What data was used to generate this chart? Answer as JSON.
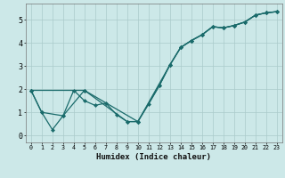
{
  "xlabel": "Humidex (Indice chaleur)",
  "xlim": [
    -0.5,
    23.5
  ],
  "ylim": [
    -0.3,
    5.7
  ],
  "xtick_labels": [
    "0",
    "1",
    "2",
    "3",
    "4",
    "5",
    "6",
    "7",
    "8",
    "9",
    "10",
    "11",
    "12",
    "13",
    "14",
    "15",
    "16",
    "17",
    "18",
    "19",
    "20",
    "21",
    "22",
    "23"
  ],
  "ytick_values": [
    0,
    1,
    2,
    3,
    4,
    5
  ],
  "background_color": "#cce8e8",
  "grid_color": "#aacaca",
  "line_color": "#1a6b6b",
  "line1_x": [
    0,
    1,
    2,
    3,
    4,
    5,
    6,
    7,
    8,
    9,
    10,
    11,
    12,
    13,
    14,
    15,
    16,
    17,
    18,
    19,
    20,
    21,
    22,
    23
  ],
  "line1_y": [
    1.95,
    1.0,
    0.25,
    0.85,
    1.95,
    1.5,
    1.3,
    1.4,
    0.9,
    0.6,
    0.6,
    1.35,
    2.15,
    3.05,
    3.8,
    4.1,
    4.35,
    4.7,
    4.65,
    4.75,
    4.9,
    5.2,
    5.3,
    5.35
  ],
  "line2_x": [
    0,
    1,
    3,
    5,
    9,
    10,
    13,
    14,
    15,
    16,
    17,
    18,
    19,
    20,
    21,
    22,
    23
  ],
  "line2_y": [
    1.95,
    1.0,
    0.85,
    1.95,
    0.6,
    0.6,
    3.05,
    3.8,
    4.1,
    4.35,
    4.7,
    4.65,
    4.75,
    4.9,
    5.2,
    5.3,
    5.35
  ],
  "line3_x": [
    0,
    5,
    10,
    12,
    13,
    14,
    15,
    16,
    17,
    18,
    19,
    20,
    21,
    22,
    23
  ],
  "line3_y": [
    1.95,
    1.95,
    0.6,
    2.15,
    3.05,
    3.8,
    4.1,
    4.35,
    4.7,
    4.65,
    4.75,
    4.9,
    5.2,
    5.3,
    5.35
  ]
}
